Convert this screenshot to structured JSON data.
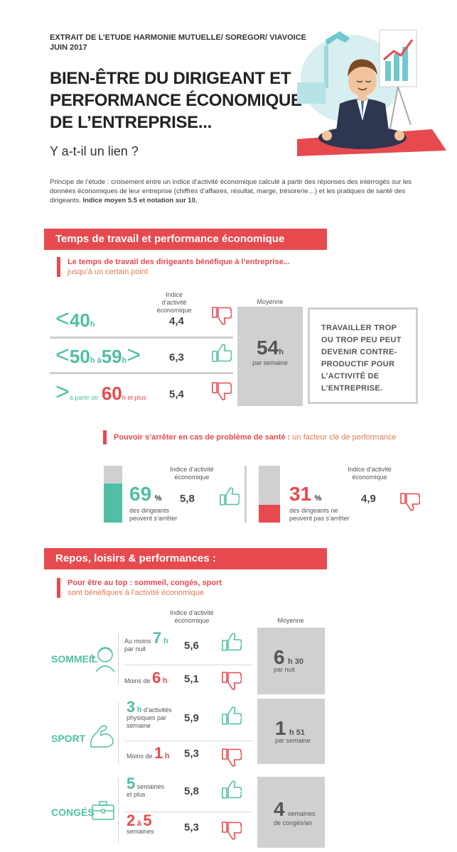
{
  "header": {
    "extract": "EXTRAIT DE L’ETUDE HARMONIE MUTUELLE/ SOREGOR/ VIAVOICE",
    "date": "JUIN 2017",
    "title_line1": "BIEN-ÊTRE DU DIRIGEANT ET",
    "title_line2": "PERFORMANCE ÉCONOMIQUE",
    "title_line3": "DE L’ENTREPRISE...",
    "question": "Y a-t-il un lien ?"
  },
  "intro": {
    "text": "Principe de l’étude : croisement entre un indice d’activité économique calculé à partir des réponses des interrogés sur les données économiques de leur entreprise (chiffres d’affaires, résultat, marge, trésorerie…) et les pratiques de santé des dirigeants.",
    "bold": "Indice moyen 5.5 et notation sur 10."
  },
  "section1": {
    "title": "Temps de travail et performance économique",
    "subtitle_bold": "Le temps de travail des dirigeants bénéfique à l’entreprise...",
    "subtitle_rest": "jusqu’à un certain point",
    "col_index": "Indice d’activité économique",
    "col_avg": "Moyenne",
    "rows": [
      {
        "sym": "<",
        "num": "40",
        "unit": "h",
        "value": "4,4"
      },
      {
        "sym": "<",
        "num_a": "50",
        "unit_a": "h à",
        "num_b": "59",
        "unit_b": "h",
        "sym_end": ">",
        "value": "6,3"
      },
      {
        "sym": ">",
        "pre": "à partir de",
        "num": "60",
        "unit": "h et plus",
        "value": "5,4"
      }
    ],
    "avg_value": "54",
    "avg_unit": "h",
    "avg_label": "par semaine",
    "quote": "TRAVAILLER TROP OU TROP PEU PEUT DEVENIR CONTRE-PRODUCTIF POUR L’ACTIVITÉ DE L’ENTREPRISE."
  },
  "health": {
    "subtitle_bold": "Pouvoir s’arrêter en cas de problème de santé :",
    "subtitle_rest": "un facteur clé de performance",
    "col_index": "Indice d’activité économique",
    "left": {
      "pct": "69",
      "pct_unit": "%",
      "label": "des dirigeants peuvent s’arrêter",
      "value": "5,8",
      "fill_fraction": 0.69
    },
    "right": {
      "pct": "31",
      "pct_unit": "%",
      "label": "des dirigeants ne peuvent pas s’arrêter",
      "value": "4,9",
      "fill_fraction": 0.31
    }
  },
  "section2": {
    "title": "Repos, loisirs & performances :",
    "subtitle_bold": "Pour être au top : sommeil, congés, sport",
    "subtitle_rest": "sont bénéfiques à l’activité économique",
    "col_index": "Indice d’activité économique",
    "col_avg": "Moyenne",
    "sleep": {
      "label": "SOMMEIL",
      "row1_pre": "Au moins",
      "row1_num": "7",
      "row1_unit": "h",
      "row1_post": "par nuit",
      "row1_value": "5,6",
      "row2_pre": "Moins de",
      "row2_num": "6",
      "row2_unit": "h",
      "row2_value": "5,1",
      "avg_num": "6",
      "avg_unit": "h 30",
      "avg_label": "par nuit"
    },
    "sport": {
      "label": "SPORT",
      "row1_num": "3",
      "row1_unit": "h",
      "row1_text1": "d’activités",
      "row1_text2": "physiques par",
      "row1_text3": "semaine",
      "row1_value": "5,9",
      "row2_pre": "Moins de",
      "row2_num": "1",
      "row2_unit": "h",
      "row2_value": "5,3",
      "avg_num": "1",
      "avg_unit": "h 51",
      "avg_label": "par semaine"
    },
    "holidays": {
      "label": "CONGÉS",
      "row1_num": "5",
      "row1_unit": "semaines",
      "row1_post": "et plus",
      "row1_value": "5,8",
      "row2_num_a": "2",
      "row2_mid": "à",
      "row2_num_b": "5",
      "row2_post": "semaines",
      "row2_value": "5,3",
      "avg_num": "4",
      "avg_unit": "semaines",
      "avg_label": "de congés/an"
    }
  },
  "icons": [
    "thumb-up-icon",
    "thumb-down-icon",
    "person-icon",
    "bicep-icon",
    "suitcase-icon",
    "meditating-manager-illustration"
  ],
  "colors": {
    "red": "#e64a4f",
    "teal": "#4fbfa5",
    "grey": "#d0d0d0"
  }
}
